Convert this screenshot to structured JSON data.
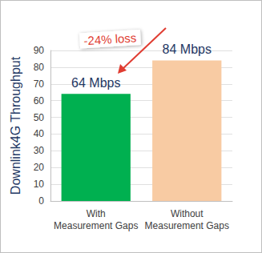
{
  "chart_data": {
    "type": "bar",
    "y_label": "Downlink4G Throughput",
    "categories": [
      "With\nMeasurement Gaps",
      "Without\nMeasurement Gaps"
    ],
    "values": [
      64,
      84
    ],
    "value_labels": [
      "64 Mbps",
      "84 Mbps"
    ],
    "data_labels": true,
    "colors": [
      "#00b050",
      "#f8cba3"
    ],
    "annotations": [
      {
        "text": "-24% loss"
      }
    ],
    "ylim": [
      0,
      90
    ],
    "yticks": [
      0,
      10,
      20,
      30,
      40,
      50,
      60,
      70,
      80,
      90
    ],
    "grid": true
  }
}
